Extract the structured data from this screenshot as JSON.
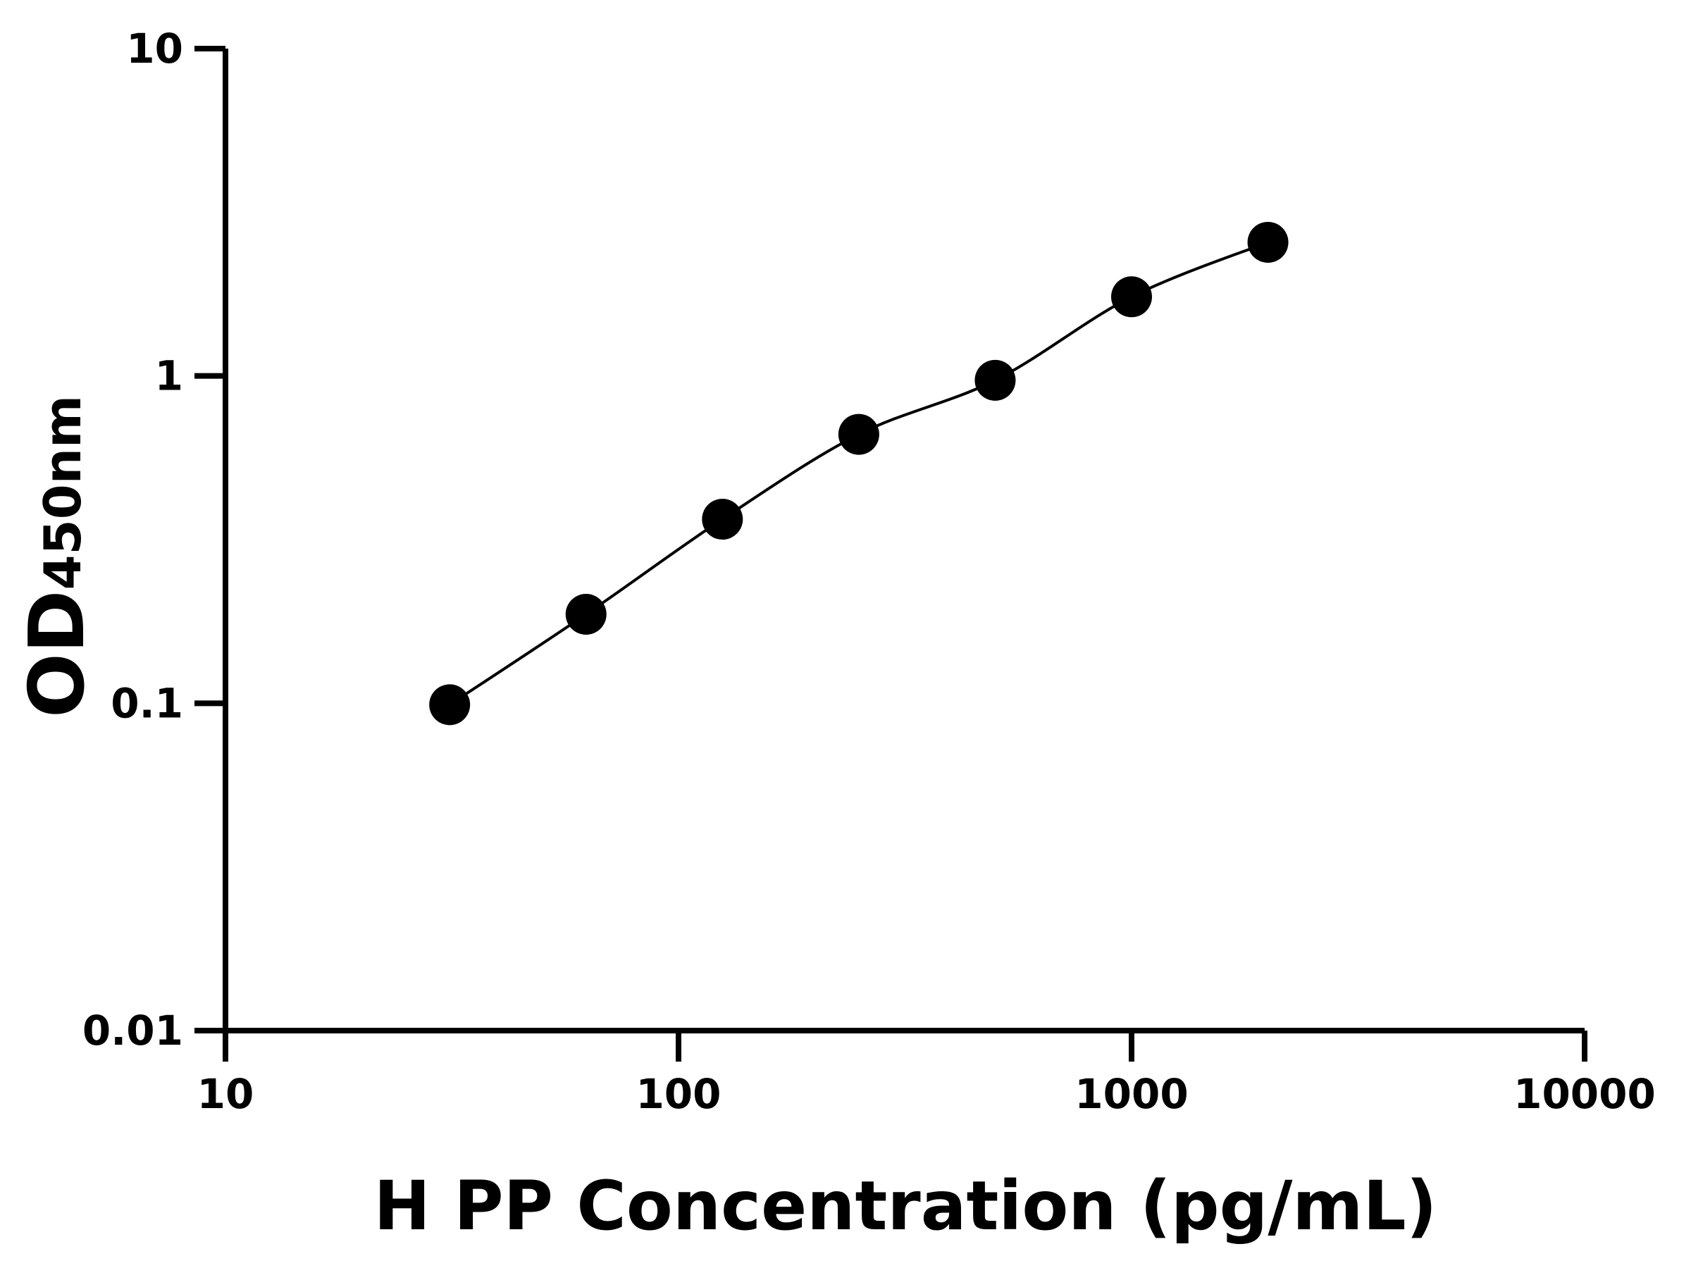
{
  "chart_data": {
    "type": "scatter",
    "title": "",
    "xlabel": "H PP Concentration (pg/mL)",
    "ylabel_main": "OD",
    "ylabel_sub": "450nm",
    "x_scale": "log",
    "y_scale": "log",
    "xlim": [
      10,
      10000
    ],
    "ylim": [
      0.01,
      10
    ],
    "x_ticks": [
      "10",
      "100",
      "1000",
      "10000"
    ],
    "y_ticks": [
      "0.01",
      "0.1",
      "1",
      "10"
    ],
    "grid": false,
    "fit_line": true,
    "series": [
      {
        "x": [
          31.25,
          62.5,
          125,
          250,
          500,
          1000,
          2000
        ],
        "y": [
          0.099,
          0.187,
          0.365,
          0.663,
          0.97,
          1.745,
          2.56
        ]
      }
    ],
    "colors": {
      "marker": "#000000",
      "line": "#000000",
      "axis": "#000000"
    }
  }
}
